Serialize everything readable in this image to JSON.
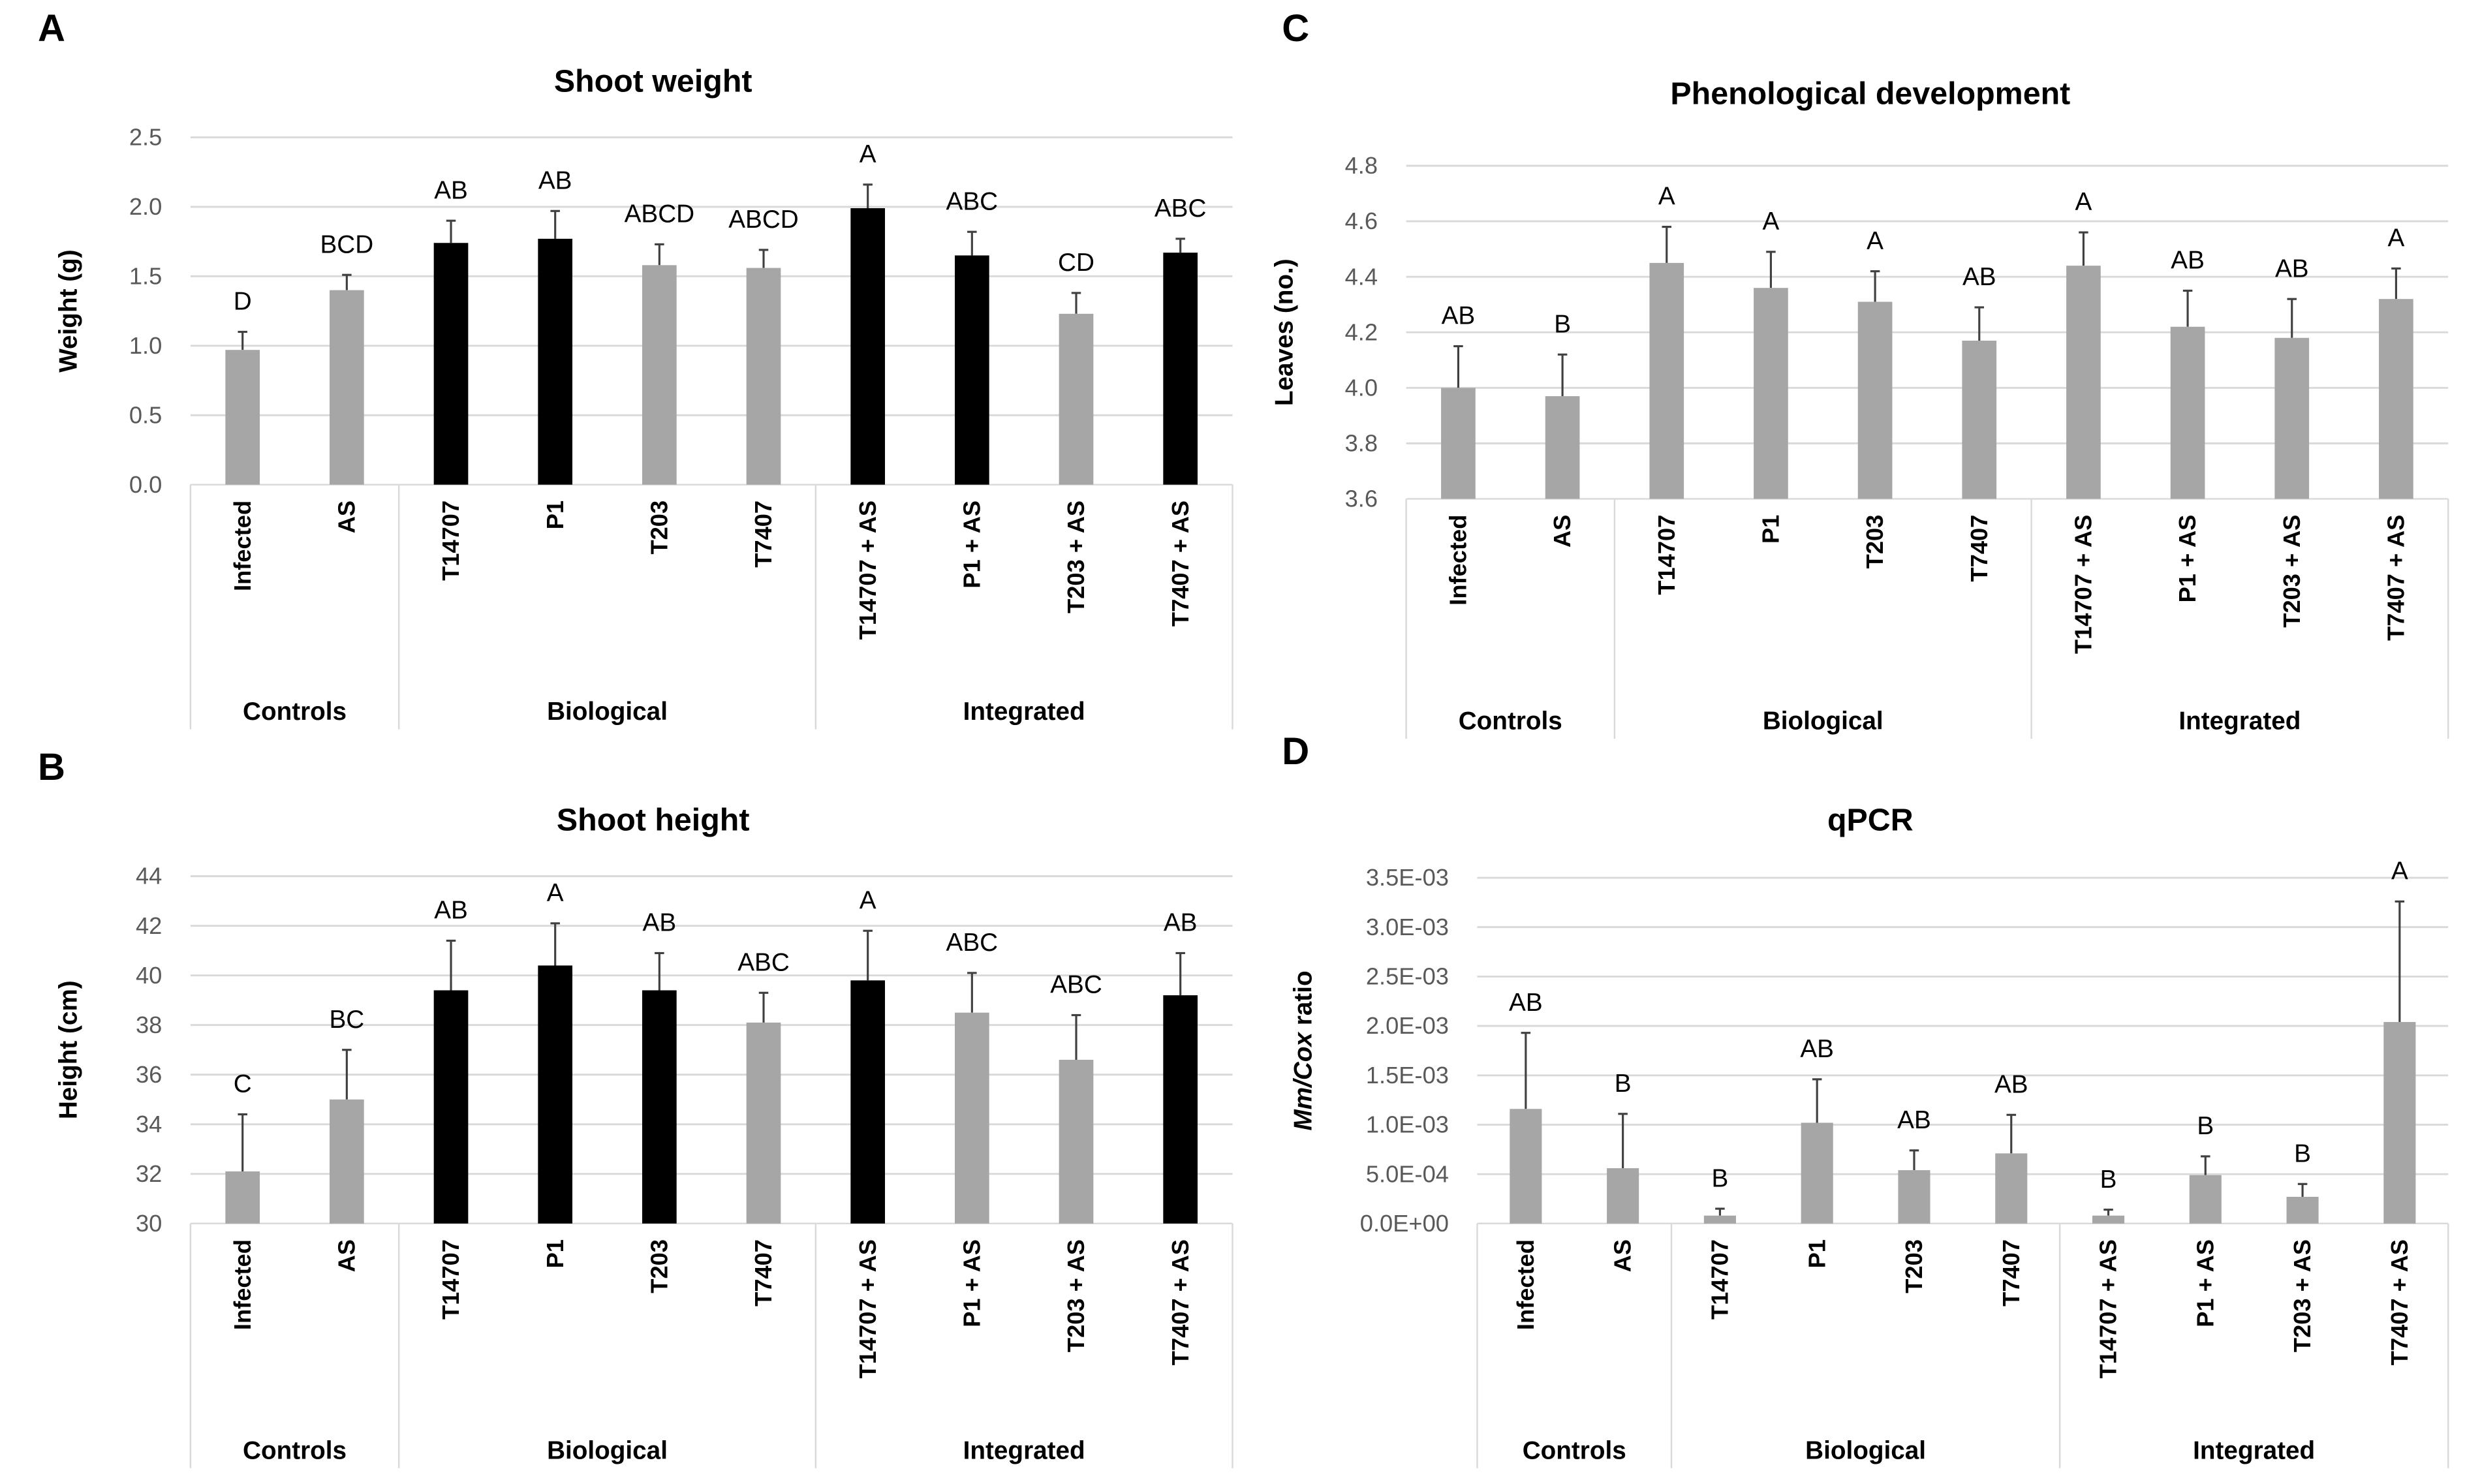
{
  "chart_data": [
    {
      "panel": "A",
      "type": "bar",
      "title": "Shoot weight",
      "ylabel": "Weight (g)",
      "ylim": [
        0,
        2.5
      ],
      "yticks": [
        "0.0",
        "0.5",
        "1.0",
        "1.5",
        "2.0",
        "2.5"
      ],
      "ystep": 0.5,
      "categories": [
        "Infected",
        "AS",
        "T14707",
        "P1",
        "T203",
        "T7407",
        "T14707 + AS",
        "P1 + AS",
        "T203 + AS",
        "T7407 + AS"
      ],
      "groups": [
        {
          "name": "Controls",
          "count": 2
        },
        {
          "name": "Biological",
          "count": 4
        },
        {
          "name": "Integrated",
          "count": 4
        }
      ],
      "values": [
        0.97,
        1.4,
        1.74,
        1.77,
        1.58,
        1.56,
        1.99,
        1.65,
        1.23,
        1.67
      ],
      "error_upper": [
        1.1,
        1.51,
        1.9,
        1.97,
        1.73,
        1.69,
        2.16,
        1.82,
        1.38,
        1.77
      ],
      "letters": [
        "D",
        "BCD",
        "AB",
        "AB",
        "ABCD",
        "ABCD",
        "A",
        "ABC",
        "CD",
        "ABC"
      ],
      "bar_colors": [
        "#a6a6a6",
        "#a6a6a6",
        "#000000",
        "#000000",
        "#a6a6a6",
        "#a6a6a6",
        "#000000",
        "#000000",
        "#a6a6a6",
        "#000000"
      ]
    },
    {
      "panel": "B",
      "type": "bar",
      "title": "Shoot height",
      "ylabel": "Height (cm)",
      "ylim": [
        30,
        44
      ],
      "yticks": [
        "30",
        "32",
        "34",
        "36",
        "38",
        "40",
        "42",
        "44"
      ],
      "ystep": 2,
      "categories": [
        "Infected",
        "AS",
        "T14707",
        "P1",
        "T203",
        "T7407",
        "T14707 + AS",
        "P1 + AS",
        "T203 + AS",
        "T7407 + AS"
      ],
      "groups": [
        {
          "name": "Controls",
          "count": 2
        },
        {
          "name": "Biological",
          "count": 4
        },
        {
          "name": "Integrated",
          "count": 4
        }
      ],
      "values": [
        32.1,
        35.0,
        39.4,
        40.4,
        39.4,
        38.1,
        39.8,
        38.5,
        36.6,
        39.2
      ],
      "error_upper": [
        34.4,
        37.0,
        41.4,
        42.1,
        40.9,
        39.3,
        41.8,
        40.1,
        38.4,
        40.9
      ],
      "letters": [
        "C",
        "BC",
        "AB",
        "A",
        "AB",
        "ABC",
        "A",
        "ABC",
        "ABC",
        "AB"
      ],
      "bar_colors": [
        "#a6a6a6",
        "#a6a6a6",
        "#000000",
        "#000000",
        "#000000",
        "#a6a6a6",
        "#000000",
        "#a6a6a6",
        "#a6a6a6",
        "#000000"
      ]
    },
    {
      "panel": "C",
      "type": "bar",
      "title": "Phenological development",
      "ylabel": "Leaves (no.)",
      "ylim": [
        3.6,
        4.8
      ],
      "yticks": [
        "3.6",
        "3.8",
        "4.0",
        "4.2",
        "4.4",
        "4.6",
        "4.8"
      ],
      "ystep": 0.2,
      "categories": [
        "Infected",
        "AS",
        "T14707",
        "P1",
        "T203",
        "T7407",
        "T14707 + AS",
        "P1 + AS",
        "T203 + AS",
        "T7407 + AS"
      ],
      "groups": [
        {
          "name": "Controls",
          "count": 2
        },
        {
          "name": "Biological",
          "count": 4
        },
        {
          "name": "Integrated",
          "count": 4
        }
      ],
      "values": [
        4.0,
        3.97,
        4.45,
        4.36,
        4.31,
        4.17,
        4.44,
        4.22,
        4.18,
        4.32
      ],
      "error_upper": [
        4.15,
        4.12,
        4.58,
        4.49,
        4.42,
        4.29,
        4.56,
        4.35,
        4.32,
        4.43
      ],
      "letters": [
        "AB",
        "B",
        "A",
        "A",
        "A",
        "AB",
        "A",
        "AB",
        "AB",
        "A"
      ],
      "bar_colors": [
        "#a6a6a6",
        "#a6a6a6",
        "#a6a6a6",
        "#a6a6a6",
        "#a6a6a6",
        "#a6a6a6",
        "#a6a6a6",
        "#a6a6a6",
        "#a6a6a6",
        "#a6a6a6"
      ]
    },
    {
      "panel": "D",
      "type": "bar",
      "title": "qPCR",
      "ylabel_italic": "Mm/Cox",
      "ylabel_rest": " ratio",
      "ylim": [
        0,
        0.0035
      ],
      "yticks": [
        "0.0E+00",
        "5.0E-04",
        "1.0E-03",
        "1.5E-03",
        "2.0E-03",
        "2.5E-03",
        "3.0E-03",
        "3.5E-03"
      ],
      "ystep": 0.0005,
      "categories": [
        "Infected",
        "AS",
        "T14707",
        "P1",
        "T203",
        "T7407",
        "T14707 + AS",
        "P1 + AS",
        "T203 + AS",
        "T7407 + AS"
      ],
      "groups": [
        {
          "name": "Controls",
          "count": 2
        },
        {
          "name": "Biological",
          "count": 4
        },
        {
          "name": "Integrated",
          "count": 4
        }
      ],
      "values": [
        0.00116,
        0.00056,
        8e-05,
        0.00102,
        0.00054,
        0.00071,
        8e-05,
        0.00049,
        0.00027,
        0.00204
      ],
      "error_upper": [
        0.00193,
        0.00111,
        0.00015,
        0.00146,
        0.00074,
        0.0011,
        0.00014,
        0.00068,
        0.0004,
        0.00326
      ],
      "letters": [
        "AB",
        "B",
        "B",
        "AB",
        "AB",
        "AB",
        "B",
        "B",
        "B",
        "A"
      ],
      "bar_colors": [
        "#a6a6a6",
        "#a6a6a6",
        "#a6a6a6",
        "#a6a6a6",
        "#a6a6a6",
        "#a6a6a6",
        "#a6a6a6",
        "#a6a6a6",
        "#a6a6a6",
        "#a6a6a6"
      ]
    }
  ]
}
